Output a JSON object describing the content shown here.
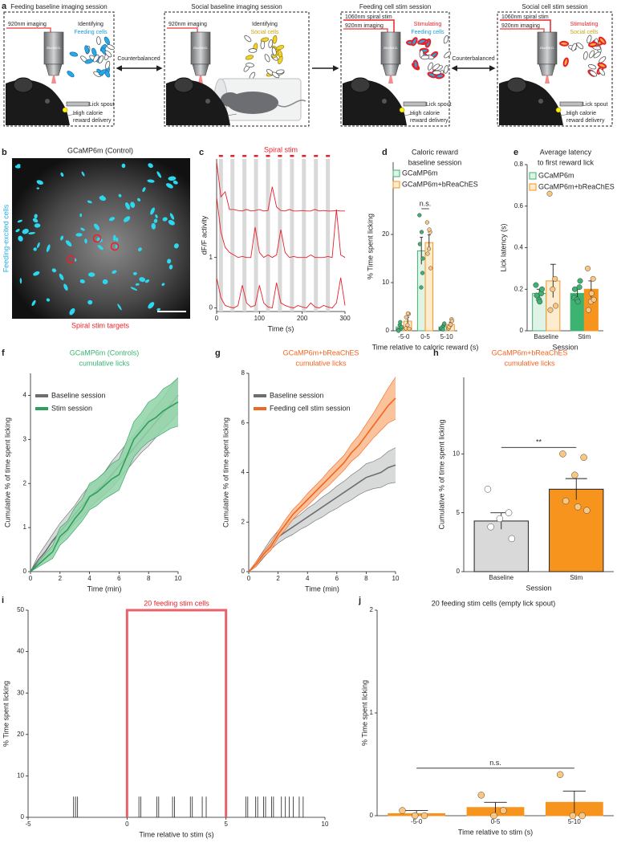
{
  "diagram": {
    "panel": "a",
    "objective": "25x/8W.D.",
    "arrows": [
      "Counterbalanced",
      "Counterbalanced"
    ],
    "boxes": [
      {
        "title": "Feeding baseline imaging session",
        "imaging": "920nm imaging",
        "action": "Identifying",
        "cells": "Feeding cells",
        "spout": "Lick spout",
        "reward": [
          "High calorie",
          "reward delivery"
        ]
      },
      {
        "title": "Social baseline imaging session",
        "imaging": "920nm imaging",
        "action": "Identifying",
        "cells": "Social cells"
      },
      {
        "title": "Feeding cell stim session",
        "stim": "1060nm spiral stim",
        "imaging": "920nm imaging",
        "action": "Stimulating",
        "cells": "Feeding cells",
        "spout": "Lick spout",
        "reward": [
          "High calorie",
          "reward delivery"
        ]
      },
      {
        "title": "Social cell stim session",
        "stim": "1060nm spiral stim",
        "imaging": "920nm imaging",
        "action": "Stimulating",
        "cells": "Social cells",
        "spout": "Lick spout",
        "reward": [
          "High calorie",
          "reward delivery"
        ]
      }
    ]
  },
  "image": {
    "panel": "b",
    "title": "GCaMP6m (Control)",
    "side_label": "Feeding-excited cells",
    "bottom_label": "Spiral stim targets"
  },
  "chart_data": [
    {
      "panel": "c",
      "type": "line",
      "title": "Spiral stim",
      "title_color": "#e8202a",
      "xlabel": "Time (s)",
      "ylabel": "dF/F activity",
      "xlim": [
        0,
        300
      ],
      "xticks": [
        0,
        100,
        200,
        300
      ],
      "ylim": [
        -0.07,
        2.95
      ],
      "yticks": [
        0,
        1
      ],
      "x": [
        0,
        10,
        20,
        30,
        40,
        50,
        60,
        70,
        80,
        90,
        100,
        110,
        120,
        130,
        140,
        150,
        160,
        170,
        180,
        190,
        200,
        210,
        220,
        230,
        240,
        250,
        260,
        270,
        280,
        290,
        300
      ],
      "series": [
        {
          "color": "#e8202a",
          "values": [
            2.9,
            2.2,
            2.3,
            1.95,
            1.95,
            1.93,
            1.92,
            1.95,
            1.92,
            1.93,
            1.95,
            1.92,
            1.93,
            2.4,
            2.0,
            1.93,
            1.92,
            1.95,
            1.92,
            1.92,
            1.93,
            1.92,
            1.92,
            1.95,
            1.92,
            1.93,
            1.92,
            1.92,
            1.93,
            1.92,
            1.92
          ]
        },
        {
          "color": "#e8202a",
          "values": [
            2.2,
            1.5,
            1.2,
            1.1,
            1.05,
            1.0,
            1.02,
            1.0,
            1.0,
            1.6,
            1.1,
            1.0,
            1.05,
            1.0,
            1.05,
            1.55,
            1.1,
            1.0,
            1.02,
            1.0,
            1.0,
            1.0,
            1.05,
            1.0,
            1.0,
            1.0,
            1.02,
            1.0,
            1.95,
            1.05,
            1.0
          ]
        },
        {
          "color": "#e8202a",
          "values": [
            0.6,
            0.2,
            0.05,
            0.02,
            0.0,
            0.05,
            0.45,
            0.1,
            0.02,
            0.05,
            0.45,
            0.1,
            0.02,
            0.0,
            0.5,
            0.1,
            0.05,
            0.02,
            0.0,
            0.05,
            0.02,
            0.0,
            0.1,
            0.02,
            0.0,
            0.05,
            0.02,
            0.0,
            0.1,
            0.6,
            0.05
          ]
        }
      ],
      "stim_times": [
        10,
        37,
        65,
        92,
        120,
        148,
        176,
        204,
        232,
        260
      ],
      "stim_color": "#d9d9d9"
    },
    {
      "panel": "d",
      "type": "bar",
      "title": [
        "Caloric reward",
        "baseline session"
      ],
      "xlabel": "Time relative to caloric reward (s)",
      "ylabel": "% Time spent licking",
      "categories": [
        "-5-0",
        "0-5",
        "5-10"
      ],
      "ylim": [
        0,
        35
      ],
      "yticks": [
        0,
        10,
        20
      ],
      "series": [
        {
          "name": "GCaMP6m",
          "color": "#3cb371",
          "fills": [
            "#e0f3e7",
            "#e0f3e7",
            "#e0f3e7"
          ],
          "point_fills": [
            "#3cb371",
            "#3cb371",
            "#3cb371"
          ],
          "values": [
            0.8,
            16.6,
            0.8
          ],
          "errors": [
            0.4,
            2.8,
            0.3
          ],
          "points": [
            [
              0.2,
              0.5,
              1.2,
              0,
              0.8,
              1.8
            ],
            [
              24,
              12,
              9,
              18,
              15,
              20.5
            ],
            [
              0.4,
              1.2,
              0.8,
              0.5,
              1.5,
              0.3
            ]
          ]
        },
        {
          "name": "GCaMP6m+bReaChES",
          "color": "#f7941d",
          "fills": [
            "#fdeccf",
            "#fdeccf",
            "#fdeccf"
          ],
          "point_fills": [
            "#fbc680",
            "#fbc680",
            "#fbc680"
          ],
          "values": [
            2.0,
            18.3,
            1.3
          ],
          "errors": [
            0.8,
            1.6,
            0.5
          ],
          "points": [
            [
              0.5,
              3.5,
              1.2,
              2.8,
              0.4,
              3.6
            ],
            [
              22.5,
              20.5,
              17,
              16,
              13,
              21
            ],
            [
              0.5,
              2.4,
              1.1,
              0.8,
              2,
              1.3
            ]
          ]
        }
      ],
      "annotation": "n.s."
    },
    {
      "panel": "e",
      "type": "bar",
      "title": [
        "Average latency",
        "to first reward lick"
      ],
      "xlabel": "Session",
      "ylabel": "Lick latency (s)",
      "categories": [
        "Baseline",
        "Stim"
      ],
      "ylim": [
        0,
        0.8
      ],
      "yticks": [
        0,
        0.2,
        0.4,
        0.6,
        0.8
      ],
      "series": [
        {
          "name": "GCaMP6m",
          "color": "#3cb371",
          "fills": [
            "#e0f3e7",
            "#3cb371"
          ],
          "point_fills": [
            "#3cb371",
            "#3cb371"
          ],
          "values": [
            0.18,
            0.18
          ],
          "errors": [
            0.02,
            0.02
          ],
          "points": [
            [
              0.22,
              0.18,
              0.15,
              0.17,
              0.2,
              0.14
            ],
            [
              0.16,
              0.21,
              0.15,
              0.2,
              0.24,
              0.14
            ]
          ]
        },
        {
          "name": "GCaMP6m+bReaChES",
          "color": "#f7941d",
          "fills": [
            "#fdeccf",
            "#f7941d"
          ],
          "point_fills": [
            "#fbc680",
            "#fbc680"
          ],
          "values": [
            0.24,
            0.2
          ],
          "errors": [
            0.08,
            0.04
          ],
          "points": [
            [
              0.66,
              0.25,
              0.2,
              0.1,
              0.12
            ],
            [
              0.3,
              0.25,
              0.14,
              0.1,
              0.15,
              0.18
            ]
          ]
        }
      ]
    },
    {
      "panel": "f",
      "type": "line",
      "title": [
        "GCaMP6m (Controls)",
        "cumulative licks"
      ],
      "title_color": "#3cb371",
      "xlabel": "Time (min)",
      "ylabel": "Cumulative % of time spent licking",
      "xlim": [
        0,
        10
      ],
      "xticks": [
        0,
        2,
        4,
        6,
        8,
        10
      ],
      "ylim": [
        0,
        4.5
      ],
      "yticks": [
        0,
        1,
        2,
        3,
        4
      ],
      "x": [
        0,
        0.5,
        1,
        1.5,
        2,
        2.5,
        3,
        3.5,
        4,
        4.5,
        5,
        5.5,
        6,
        6.5,
        7,
        7.5,
        8,
        8.5,
        9,
        9.5,
        10
      ],
      "series": [
        {
          "name": "Baseline session",
          "color": "#6d6e71",
          "band_color": "#d1d3d4",
          "values": [
            0,
            0.25,
            0.45,
            0.7,
            0.9,
            1.1,
            1.3,
            1.5,
            1.7,
            1.85,
            2.0,
            2.2,
            2.4,
            2.6,
            2.8,
            3.0,
            3.2,
            3.4,
            3.6,
            3.8,
            4.0
          ],
          "lower": [
            0,
            0.15,
            0.3,
            0.55,
            0.7,
            0.9,
            1.1,
            1.25,
            1.45,
            1.6,
            1.75,
            1.9,
            2.1,
            2.3,
            2.5,
            2.7,
            2.85,
            3.05,
            3.25,
            3.4,
            3.6
          ],
          "upper": [
            0,
            0.35,
            0.6,
            0.85,
            1.1,
            1.3,
            1.5,
            1.75,
            1.95,
            2.1,
            2.25,
            2.5,
            2.7,
            2.9,
            3.1,
            3.3,
            3.55,
            3.75,
            3.95,
            4.2,
            4.4
          ]
        },
        {
          "name": "Stim session",
          "color": "#2ea05a",
          "band_color": "#8fd4a8",
          "values": [
            0,
            0.15,
            0.3,
            0.45,
            0.8,
            0.95,
            1.2,
            1.4,
            1.7,
            1.8,
            1.95,
            2.1,
            2.2,
            2.6,
            3.0,
            3.2,
            3.4,
            3.5,
            3.65,
            3.75,
            3.85
          ],
          "lower": [
            0,
            0.1,
            0.2,
            0.3,
            0.6,
            0.75,
            0.95,
            1.15,
            1.4,
            1.5,
            1.65,
            1.75,
            1.85,
            2.25,
            2.6,
            2.8,
            2.95,
            3.05,
            3.15,
            3.25,
            3.3
          ],
          "upper": [
            0,
            0.2,
            0.4,
            0.6,
            1.0,
            1.15,
            1.45,
            1.65,
            2.0,
            2.1,
            2.25,
            2.45,
            2.55,
            2.95,
            3.4,
            3.6,
            3.85,
            3.95,
            4.15,
            4.25,
            4.4
          ]
        }
      ]
    },
    {
      "panel": "g",
      "type": "line",
      "title": [
        "GCaMP6m+bReaChES",
        "cumulative licks"
      ],
      "title_color": "#f26522",
      "xlabel": "Time (min)",
      "ylabel": "Cumulative % of time spent licking",
      "xlim": [
        0,
        10
      ],
      "xticks": [
        0,
        2,
        4,
        6,
        8,
        10
      ],
      "ylim": [
        0,
        8
      ],
      "yticks": [
        0,
        2,
        4,
        6,
        8
      ],
      "x": [
        0,
        0.5,
        1,
        1.5,
        2,
        2.5,
        3,
        3.5,
        4,
        4.5,
        5,
        5.5,
        6,
        6.5,
        7,
        7.5,
        8,
        8.5,
        9,
        9.5,
        10
      ],
      "series": [
        {
          "name": "Baseline session",
          "color": "#6d6e71",
          "band_color": "#d1d3d4",
          "values": [
            0,
            0.3,
            0.7,
            1.1,
            1.4,
            1.6,
            1.8,
            2.0,
            2.2,
            2.4,
            2.6,
            2.8,
            3.0,
            3.2,
            3.4,
            3.6,
            3.8,
            3.9,
            4.0,
            4.2,
            4.3
          ],
          "lower": [
            0,
            0.2,
            0.55,
            0.9,
            1.15,
            1.35,
            1.5,
            1.7,
            1.85,
            2.05,
            2.2,
            2.4,
            2.55,
            2.75,
            2.9,
            3.1,
            3.25,
            3.35,
            3.4,
            3.55,
            3.6
          ],
          "upper": [
            0,
            0.4,
            0.85,
            1.3,
            1.65,
            1.85,
            2.1,
            2.3,
            2.55,
            2.75,
            3.0,
            3.2,
            3.45,
            3.65,
            3.9,
            4.1,
            4.35,
            4.45,
            4.6,
            4.85,
            5.0
          ]
        },
        {
          "name": "Feeding cell stim session",
          "color": "#f26522",
          "band_color": "#f9b88a",
          "values": [
            0,
            0.3,
            0.7,
            1.0,
            1.5,
            1.9,
            2.3,
            2.6,
            2.9,
            3.2,
            3.5,
            3.8,
            4.1,
            4.4,
            4.8,
            5.1,
            5.5,
            5.9,
            6.3,
            6.7,
            7.0
          ],
          "lower": [
            0,
            0.2,
            0.6,
            0.85,
            1.35,
            1.7,
            2.1,
            2.4,
            2.65,
            2.95,
            3.25,
            3.5,
            3.8,
            4.1,
            4.45,
            4.7,
            5.05,
            5.4,
            5.7,
            6.0,
            6.15
          ],
          "upper": [
            0,
            0.4,
            0.8,
            1.15,
            1.65,
            2.1,
            2.5,
            2.8,
            3.15,
            3.45,
            3.75,
            4.1,
            4.4,
            4.7,
            5.15,
            5.5,
            5.95,
            6.4,
            6.9,
            7.4,
            7.85
          ]
        }
      ]
    },
    {
      "panel": "h",
      "type": "bar",
      "title": [
        "GCaMP6m+bReaChES",
        "cumulative licks"
      ],
      "title_color": "#f26522",
      "xlabel": "Session",
      "ylabel": "Cumulative % of time spent licking",
      "categories": [
        "Baseline",
        "Stim"
      ],
      "ylim": [
        0,
        16.5
      ],
      "yticks": [
        0,
        5,
        10
      ],
      "series": [
        {
          "color": "#231f20",
          "fills": [
            "#d9d9d9",
            "#f7941d"
          ],
          "point_fills": [
            "#ffffff",
            "#fbc680"
          ],
          "values": [
            4.3,
            7.0
          ],
          "errors": [
            0.7,
            0.9
          ],
          "points": [
            [
              7.0,
              5.0,
              4.5,
              3.8,
              2.8
            ],
            [
              10.0,
              9.7,
              8.2,
              6.0,
              5.2,
              5.5
            ]
          ]
        }
      ],
      "annotation": "**"
    },
    {
      "panel": "i",
      "type": "spike",
      "xlabel": "Time relative to stim (s)",
      "ylabel": "% Time spent licking",
      "xlim": [
        -5,
        10
      ],
      "xticks": [
        -5,
        0,
        5,
        10
      ],
      "ylim": [
        0,
        50
      ],
      "yticks": [
        0,
        10,
        20,
        30,
        40,
        50
      ],
      "color": "#231f20",
      "lick_times": [
        -2.7,
        -2.6,
        -2.5,
        0.6,
        0.7,
        1.5,
        1.6,
        2.3,
        2.4,
        3.2,
        3.3,
        3.8,
        4.0,
        6.0,
        6.1,
        6.5,
        6.6,
        6.9,
        7.0,
        7.3,
        7.4,
        7.8,
        8.0,
        8.2,
        8.4,
        8.7,
        8.9
      ],
      "values": [
        5,
        5,
        5,
        5,
        5,
        5,
        5,
        5,
        5,
        5,
        5,
        5,
        5,
        5,
        5,
        5,
        5,
        5,
        5,
        5,
        5,
        5,
        5,
        5,
        5,
        5,
        5
      ],
      "stim_window": {
        "start": 0,
        "end": 5,
        "height": 50,
        "label": "20 feeding stim cells",
        "color": "#e8626b"
      }
    },
    {
      "panel": "j",
      "type": "bar",
      "title": "20 feeding stim cells (empty lick spout)",
      "xlabel": "Time relative to stim (s)",
      "ylabel": "% Time spent licking",
      "categories": [
        "-5-0",
        "0-5",
        "5-10"
      ],
      "ylim": [
        0,
        2
      ],
      "yticks": [
        0,
        1,
        2
      ],
      "series": [
        {
          "color": "#f7941d",
          "fills": [
            "#f7941d",
            "#f7941d",
            "#f7941d"
          ],
          "point_fills": [
            "#fbc680",
            "#fbc680",
            "#fbc680"
          ],
          "values": [
            0.02,
            0.08,
            0.13
          ],
          "errors": [
            0.03,
            0.05,
            0.11
          ],
          "points": [
            [
              0.05,
              0,
              0
            ],
            [
              0.2,
              0.05,
              0
            ],
            [
              0.4,
              0,
              0
            ]
          ]
        }
      ],
      "annotation": "n.s."
    }
  ]
}
